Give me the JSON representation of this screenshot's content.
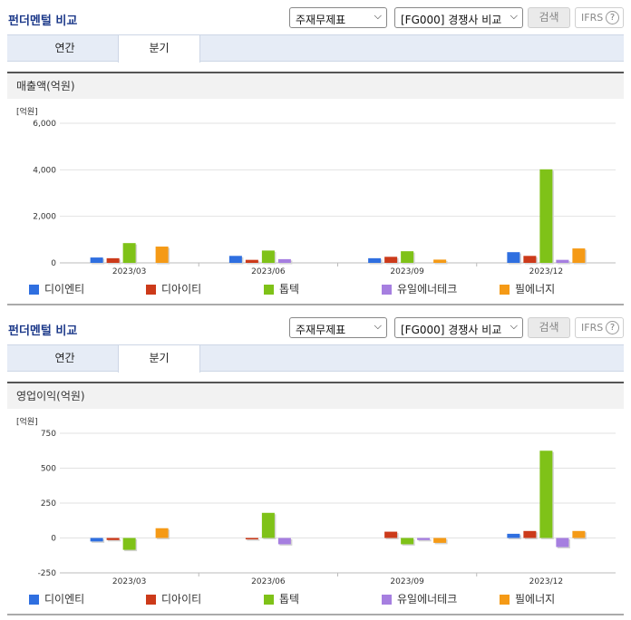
{
  "sections": [
    {
      "title": "펀더멘털 비교",
      "select1": "주재무제표",
      "select2": "[FG000] 경쟁사 비교",
      "search_label": "검색",
      "ifrs_label": "IFRS",
      "help_label": "?",
      "tabs": [
        "연간",
        "분기"
      ],
      "band_label": "매출액(억원)"
    },
    {
      "title": "펀더멘털 비교",
      "select1": "주재무제표",
      "select2": "[FG000] 경쟁사 비교",
      "search_label": "검색",
      "ifrs_label": "IFRS",
      "help_label": "?",
      "tabs": [
        "연간",
        "분기"
      ],
      "band_label": "영업이익(억원)"
    }
  ],
  "colors": {
    "디이엔티": "#2f6fe0",
    "디아이티": "#cc3a1a",
    "톱텍": "#7fc218",
    "유일에너테크": "#a67fe0",
    "필에너지": "#f59a16"
  },
  "chart_data": [
    {
      "type": "bar",
      "title": "매출액(억원)",
      "unit_label": "[억원]",
      "categories": [
        "2023/03",
        "2023/06",
        "2023/09",
        "2023/12"
      ],
      "yticks": [
        0,
        2000,
        4000,
        6000
      ],
      "ytick_labels": [
        "0",
        "2,000",
        "4,000",
        "6,000"
      ],
      "ylim": [
        0,
        6000
      ],
      "series": [
        {
          "name": "디이엔티",
          "values": [
            230,
            300,
            200,
            460
          ]
        },
        {
          "name": "디아이티",
          "values": [
            200,
            130,
            260,
            300
          ]
        },
        {
          "name": "톱텍",
          "values": [
            850,
            530,
            500,
            4020
          ]
        },
        {
          "name": "유일에너테크",
          "values": [
            0,
            160,
            0,
            130
          ]
        },
        {
          "name": "필에너지",
          "values": [
            700,
            0,
            140,
            620
          ]
        }
      ],
      "legend_position": "bottom"
    },
    {
      "type": "bar",
      "title": "영업이익(억원)",
      "unit_label": "[억원]",
      "categories": [
        "2023/03",
        "2023/06",
        "2023/09",
        "2023/12"
      ],
      "yticks": [
        -250,
        0,
        250,
        500,
        750
      ],
      "ytick_labels": [
        "-250",
        "0",
        "250",
        "500",
        "750"
      ],
      "ylim": [
        -250,
        750
      ],
      "series": [
        {
          "name": "디이엔티",
          "values": [
            -25,
            0,
            0,
            30
          ]
        },
        {
          "name": "디아이티",
          "values": [
            -15,
            -10,
            45,
            50
          ]
        },
        {
          "name": "톱텍",
          "values": [
            -85,
            180,
            -45,
            625
          ]
        },
        {
          "name": "유일에너테크",
          "values": [
            0,
            -45,
            -15,
            -65
          ]
        },
        {
          "name": "필에너지",
          "values": [
            70,
            0,
            -35,
            50
          ]
        }
      ],
      "legend_position": "bottom"
    }
  ]
}
